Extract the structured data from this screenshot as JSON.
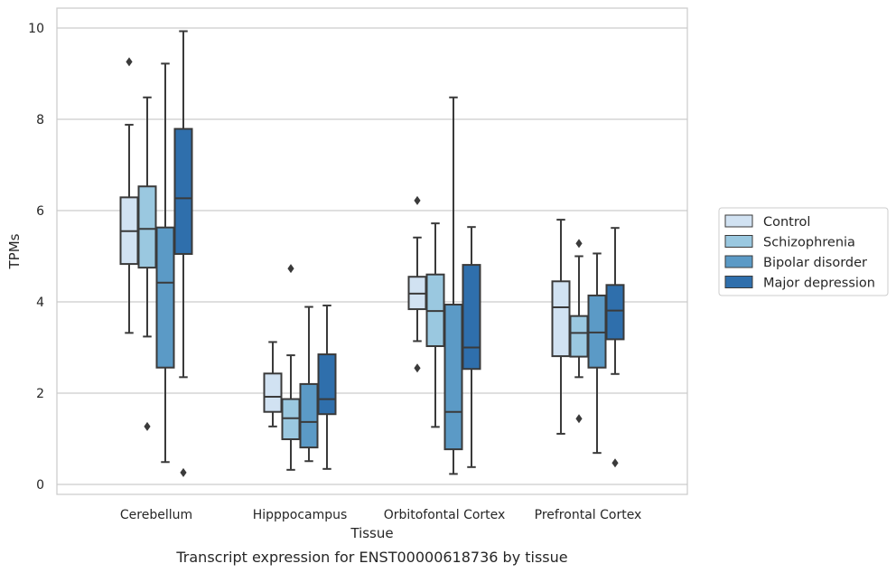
{
  "chart_data": {
    "type": "boxplot",
    "caption": "Transcript expression for ENST00000618736 by tissue",
    "xlabel": "Tissue",
    "ylabel": "TPMs",
    "ylim": [
      -0.2,
      10.45
    ],
    "yticks": [
      0,
      2,
      4,
      6,
      8,
      10
    ],
    "grid": "horizontal",
    "legend_placement": "right",
    "categories": [
      "Cerebellum",
      "Hipppocampus",
      "Orbitofontal Cortex",
      "Prefrontal Cortex"
    ],
    "series": [
      {
        "name": "Control",
        "color": "#d1e2f2",
        "boxes": [
          {
            "min": 3.32,
            "q1": 4.83,
            "median": 5.55,
            "q3": 6.29,
            "max": 7.88,
            "outliers": [
              9.26
            ]
          },
          {
            "min": 1.27,
            "q1": 1.59,
            "median": 1.92,
            "q3": 2.43,
            "max": 3.12,
            "outliers": []
          },
          {
            "min": 3.14,
            "q1": 3.84,
            "median": 4.18,
            "q3": 4.55,
            "max": 5.41,
            "outliers": [
              6.22,
              2.55
            ]
          },
          {
            "min": 1.11,
            "q1": 2.81,
            "median": 3.88,
            "q3": 4.45,
            "max": 5.8,
            "outliers": []
          }
        ]
      },
      {
        "name": "Schizophrenia",
        "color": "#9ac8e0",
        "boxes": [
          {
            "min": 3.24,
            "q1": 4.75,
            "median": 5.6,
            "q3": 6.53,
            "max": 8.48,
            "outliers": [
              1.27
            ]
          },
          {
            "min": 0.32,
            "q1": 0.99,
            "median": 1.45,
            "q3": 1.87,
            "max": 2.83,
            "outliers": [
              4.73
            ]
          },
          {
            "min": 1.26,
            "q1": 3.03,
            "median": 3.8,
            "q3": 4.6,
            "max": 5.72,
            "outliers": []
          },
          {
            "min": 2.35,
            "q1": 2.8,
            "median": 3.32,
            "q3": 3.69,
            "max": 5.0,
            "outliers": [
              5.28,
              1.44
            ]
          }
        ]
      },
      {
        "name": "Bipolar disorder",
        "color": "#5b9ac6",
        "boxes": [
          {
            "min": 0.49,
            "q1": 2.56,
            "median": 4.42,
            "q3": 5.63,
            "max": 9.22,
            "outliers": []
          },
          {
            "min": 0.51,
            "q1": 0.81,
            "median": 1.37,
            "q3": 2.2,
            "max": 3.89,
            "outliers": []
          },
          {
            "min": 0.23,
            "q1": 0.77,
            "median": 1.59,
            "q3": 3.94,
            "max": 8.48,
            "outliers": []
          },
          {
            "min": 0.69,
            "q1": 2.56,
            "median": 3.33,
            "q3": 4.14,
            "max": 5.06,
            "outliers": []
          }
        ]
      },
      {
        "name": "Major depression",
        "color": "#2f6fac",
        "boxes": [
          {
            "min": 2.35,
            "q1": 5.05,
            "median": 6.27,
            "q3": 7.79,
            "max": 9.93,
            "outliers": [
              0.26
            ]
          },
          {
            "min": 0.34,
            "q1": 1.54,
            "median": 1.87,
            "q3": 2.85,
            "max": 3.92,
            "outliers": []
          },
          {
            "min": 0.38,
            "q1": 2.53,
            "median": 3.0,
            "q3": 4.81,
            "max": 5.64,
            "outliers": []
          },
          {
            "min": 2.42,
            "q1": 3.18,
            "median": 3.81,
            "q3": 4.37,
            "max": 5.62,
            "outliers": [
              0.47
            ]
          }
        ]
      }
    ]
  }
}
